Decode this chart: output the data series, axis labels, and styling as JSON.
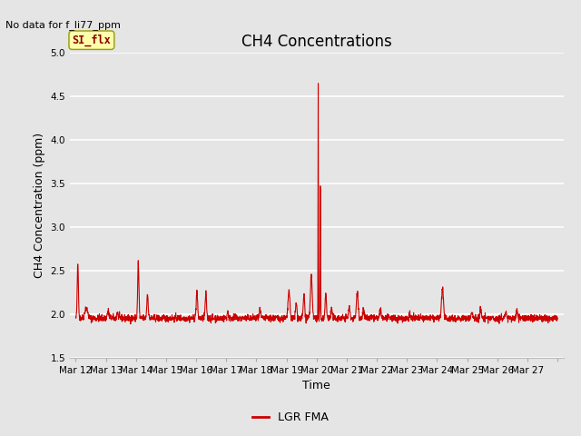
{
  "title": "CH4 Concentrations",
  "xlabel": "Time",
  "ylabel": "CH4 Concentration (ppm)",
  "no_data_label": "No data for f_li77_ppm",
  "legend_label": "LGR FMA",
  "si_flx_label": "SI_flx",
  "ylim": [
    1.5,
    5.0
  ],
  "yticks": [
    1.5,
    2.0,
    2.5,
    3.0,
    3.5,
    4.0,
    4.5,
    5.0
  ],
  "xtick_labels": [
    "Mar 12",
    "Mar 13",
    "Mar 14",
    "Mar 15",
    "Mar 16",
    "Mar 17",
    "Mar 18",
    "Mar 19",
    "Mar 20",
    "Mar 21",
    "Mar 22",
    "Mar 23",
    "Mar 24",
    "Mar 25",
    "Mar 26",
    "Mar 27"
  ],
  "line_color": "#cc0000",
  "line_width": 0.8,
  "background_color": "#e5e5e5",
  "plot_bg_color": "#e5e5e5",
  "title_fontsize": 12,
  "label_fontsize": 9,
  "tick_fontsize": 7.5,
  "no_data_fontsize": 8,
  "legend_fontsize": 9
}
